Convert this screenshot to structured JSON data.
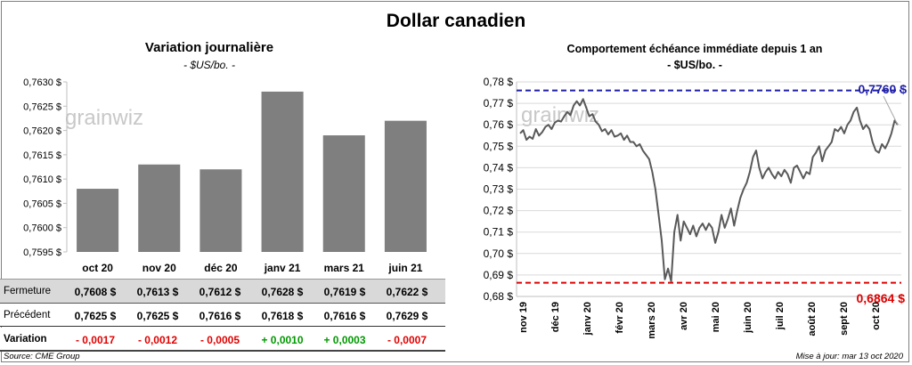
{
  "title": "Dollar canadien",
  "left_chart": {
    "title": "Variation  journalière",
    "subtitle": "- $US/bo. -",
    "watermark": "grainwiz"
  },
  "right_chart": {
    "title": "Comportement échéance immédiate depuis 1 an",
    "subtitle": "- $US/bo. -",
    "watermark": "grainwiz",
    "high_label": "0,7760 $",
    "low_label": "0,6864 $"
  },
  "table": {
    "rows": [
      {
        "label": "Fermeture",
        "values": [
          "0,7608  $",
          "0,7613  $",
          "0,7612  $",
          "0,7628  $",
          "0,7619  $",
          "0,7622  $"
        ]
      },
      {
        "label": "Précédent",
        "values": [
          "0,7625  $",
          "0,7625  $",
          "0,7616  $",
          "0,7618  $",
          "0,7616  $",
          "0,7629  $"
        ]
      },
      {
        "label": "Variation",
        "values": [
          "- 0,0017",
          "- 0,0012",
          "- 0,0005",
          "+ 0,0010",
          "+ 0,0003",
          "- 0,0007"
        ]
      }
    ]
  },
  "footer": {
    "source": "Source: CME Group",
    "updated": "Mise à jour: mar 13 oct 2020"
  },
  "colors": {
    "bar": "#7f7f7f",
    "line": "#595959",
    "high_line": "#1f1fa8",
    "low_line": "#e00000",
    "positive": "#009900",
    "negative": "#e00000"
  },
  "chart_data": [
    {
      "type": "bar",
      "title": "Variation  journalière",
      "subtitle": "- $US/bo. -",
      "categories": [
        "oct 20",
        "nov 20",
        "déc 20",
        "janv 21",
        "mars 21",
        "juin 21"
      ],
      "values": [
        0.7608,
        0.7613,
        0.7612,
        0.7628,
        0.7619,
        0.7622
      ],
      "ylim": [
        0.7595,
        0.763
      ],
      "yticks": [
        "0,7595 $",
        "0,7600 $",
        "0,7605 $",
        "0,7610 $",
        "0,7615 $",
        "0,7620 $",
        "0,7625 $",
        "0,7630 $"
      ],
      "ytick_values": [
        0.7595,
        0.76,
        0.7605,
        0.761,
        0.7615,
        0.762,
        0.7625,
        0.763
      ],
      "grid": false
    },
    {
      "type": "line",
      "title": "Comportement échéance immédiate depuis 1 an",
      "subtitle": "- $US/bo. -",
      "x_labels": [
        "nov 19",
        "déc 19",
        "janv 20",
        "févr 20",
        "mars 20",
        "avr 20",
        "mai 20",
        "juin 20",
        "juil 20",
        "août 20",
        "sept 20",
        "oct 20"
      ],
      "yticks": [
        "0,68 $",
        "0,69 $",
        "0,70 $",
        "0,71 $",
        "0,72 $",
        "0,73 $",
        "0,74 $",
        "0,75 $",
        "0,76 $",
        "0,77 $",
        "0,78 $"
      ],
      "ytick_values": [
        0.68,
        0.69,
        0.7,
        0.71,
        0.72,
        0.73,
        0.74,
        0.75,
        0.76,
        0.77,
        0.78
      ],
      "ylim": [
        0.68,
        0.78
      ],
      "high": 0.776,
      "low": 0.6864,
      "grid": true,
      "series": [
        {
          "values": [
            0.756,
            0.7575,
            0.753,
            0.7545,
            0.7535,
            0.758,
            0.755,
            0.7565,
            0.759,
            0.76,
            0.758,
            0.761,
            0.762,
            0.7615,
            0.764,
            0.766,
            0.7645,
            0.769,
            0.771,
            0.769,
            0.772,
            0.768,
            0.764,
            0.765,
            0.7615,
            0.76,
            0.757,
            0.758,
            0.7555,
            0.7575,
            0.7545,
            0.755,
            0.756,
            0.753,
            0.755,
            0.752,
            0.752,
            0.75,
            0.751,
            0.748,
            0.746,
            0.744,
            0.738,
            0.73,
            0.718,
            0.706,
            0.688,
            0.693,
            0.687,
            0.71,
            0.718,
            0.706,
            0.715,
            0.712,
            0.709,
            0.713,
            0.708,
            0.712,
            0.714,
            0.711,
            0.714,
            0.712,
            0.705,
            0.71,
            0.718,
            0.712,
            0.716,
            0.721,
            0.713,
            0.72,
            0.726,
            0.73,
            0.733,
            0.738,
            0.745,
            0.748,
            0.74,
            0.735,
            0.738,
            0.74,
            0.737,
            0.735,
            0.738,
            0.736,
            0.739,
            0.737,
            0.733,
            0.74,
            0.741,
            0.738,
            0.735,
            0.738,
            0.737,
            0.745,
            0.747,
            0.75,
            0.743,
            0.748,
            0.75,
            0.752,
            0.758,
            0.757,
            0.759,
            0.756,
            0.76,
            0.762,
            0.766,
            0.768,
            0.762,
            0.758,
            0.76,
            0.758,
            0.752,
            0.748,
            0.747,
            0.751,
            0.749,
            0.752,
            0.756,
            0.762,
            0.76
          ]
        }
      ]
    }
  ]
}
